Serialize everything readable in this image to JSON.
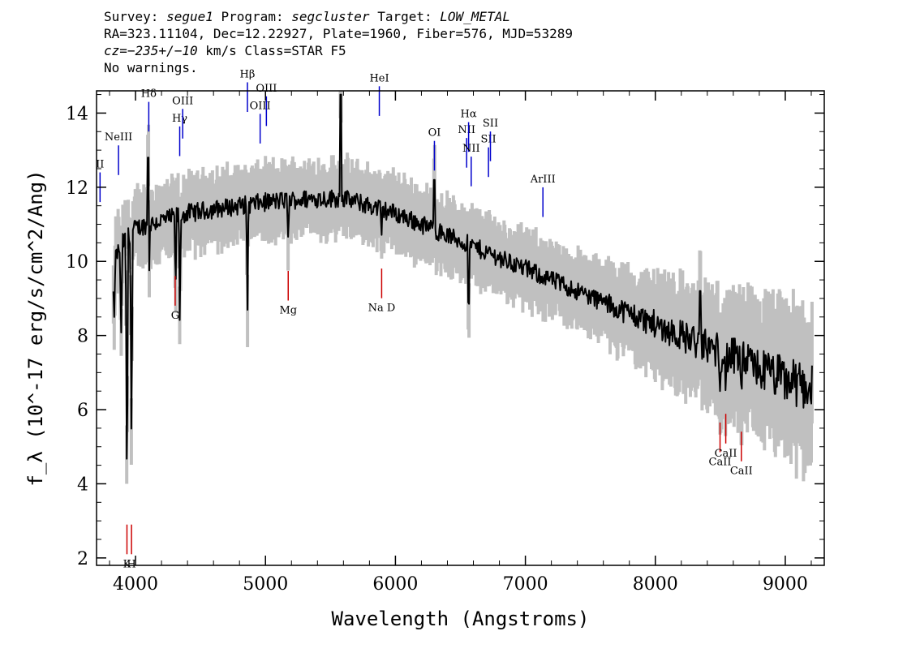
{
  "header": {
    "line1": {
      "survey_label": "Survey:",
      "survey": "segue1",
      "program_label": "Program:",
      "program": "segcluster",
      "target_label": "Target:",
      "target": "LOW_METAL"
    },
    "line2": "RA=323.11104, Dec=12.22927, Plate=1960, Fiber=576, MJD=53289",
    "line3": {
      "cz_label": "cz=",
      "cz": "−235+/−10",
      "rest": " km/s Class=STAR F5"
    },
    "line4": "No warnings."
  },
  "chart_data": {
    "type": "line",
    "xlabel": "Wavelength (Angstroms)",
    "ylabel": "f_λ (10^-17 erg/s/cm^2/Ang)",
    "xlim": [
      3700,
      9300
    ],
    "ylim": [
      1.8,
      14.6
    ],
    "x_ticks": [
      4000,
      5000,
      6000,
      7000,
      8000,
      9000
    ],
    "y_ticks": [
      2,
      4,
      6,
      8,
      10,
      12,
      14
    ],
    "grid": false,
    "colors": {
      "spectrum": "#000000",
      "noise": "#c0c0c0",
      "emission": "#0000cc",
      "absorption": "#cc0000"
    },
    "continuum": {
      "x": [
        3830,
        3900,
        4000,
        4200,
        4400,
        4600,
        4800,
        5000,
        5200,
        5400,
        5600,
        5800,
        6000,
        6200,
        6400,
        6600,
        6800,
        7000,
        7200,
        7400,
        7600,
        7800,
        8000,
        8200,
        8400,
        8600,
        8800,
        9000,
        9200
      ],
      "y": [
        10.0,
        10.5,
        10.9,
        11.1,
        11.3,
        11.4,
        11.5,
        11.6,
        11.65,
        11.7,
        11.7,
        11.5,
        11.3,
        11.0,
        10.7,
        10.4,
        10.1,
        9.8,
        9.5,
        9.2,
        8.9,
        8.6,
        8.3,
        8.0,
        7.7,
        7.4,
        7.1,
        6.8,
        6.6
      ]
    },
    "absorption_dips": [
      {
        "x": 3934,
        "y": 3.2
      },
      {
        "x": 3969,
        "y": 4.9
      },
      {
        "x": 3889,
        "y": 7.8
      },
      {
        "x": 3835,
        "y": 8.3
      },
      {
        "x": 4102,
        "y": 8.6
      },
      {
        "x": 4308,
        "y": 9.0
      },
      {
        "x": 4341,
        "y": 8.0
      },
      {
        "x": 4861,
        "y": 8.3
      },
      {
        "x": 5175,
        "y": 10.5
      },
      {
        "x": 5893,
        "y": 10.6
      },
      {
        "x": 6563,
        "y": 7.9
      },
      {
        "x": 8498,
        "y": 6.5
      },
      {
        "x": 8542,
        "y": 6.2
      },
      {
        "x": 8662,
        "y": 6.3
      }
    ],
    "spikes": [
      {
        "x": 4098,
        "y": 12.8
      },
      {
        "x": 5577,
        "y": 14.5
      },
      {
        "x": 6300,
        "y": 12.2
      },
      {
        "x": 8344,
        "y": 9.2
      }
    ],
    "emission_lines": [
      {
        "label": "II",
        "x": 3727
      },
      {
        "label": "NeIII",
        "x": 3869
      },
      {
        "label": "Hδ",
        "x": 4102
      },
      {
        "label": "Hγ",
        "x": 4340
      },
      {
        "label": "OIII",
        "x": 4363
      },
      {
        "label": "Hβ",
        "x": 4861
      },
      {
        "label": "OIII",
        "x": 4959
      },
      {
        "label": "OIII",
        "x": 5007
      },
      {
        "label": "HeI",
        "x": 5876
      },
      {
        "label": "OI",
        "x": 6300
      },
      {
        "label": "NII",
        "x": 6548
      },
      {
        "label": "Hα",
        "x": 6563
      },
      {
        "label": "NII",
        "x": 6583
      },
      {
        "label": "SII",
        "x": 6716
      },
      {
        "label": "SII",
        "x": 6731
      },
      {
        "label": "ArIII",
        "x": 7135
      }
    ],
    "absorption_lines": [
      {
        "label": "K",
        "x": 3934
      },
      {
        "label": "H",
        "x": 3969
      },
      {
        "label": "G",
        "x": 4305
      },
      {
        "label": "Mg",
        "x": 5175
      },
      {
        "label": "Na D",
        "x": 5894
      },
      {
        "label": "CaII",
        "x": 8498
      },
      {
        "label": "CaII",
        "x": 8542
      },
      {
        "label": "CaII",
        "x": 8662
      }
    ]
  }
}
